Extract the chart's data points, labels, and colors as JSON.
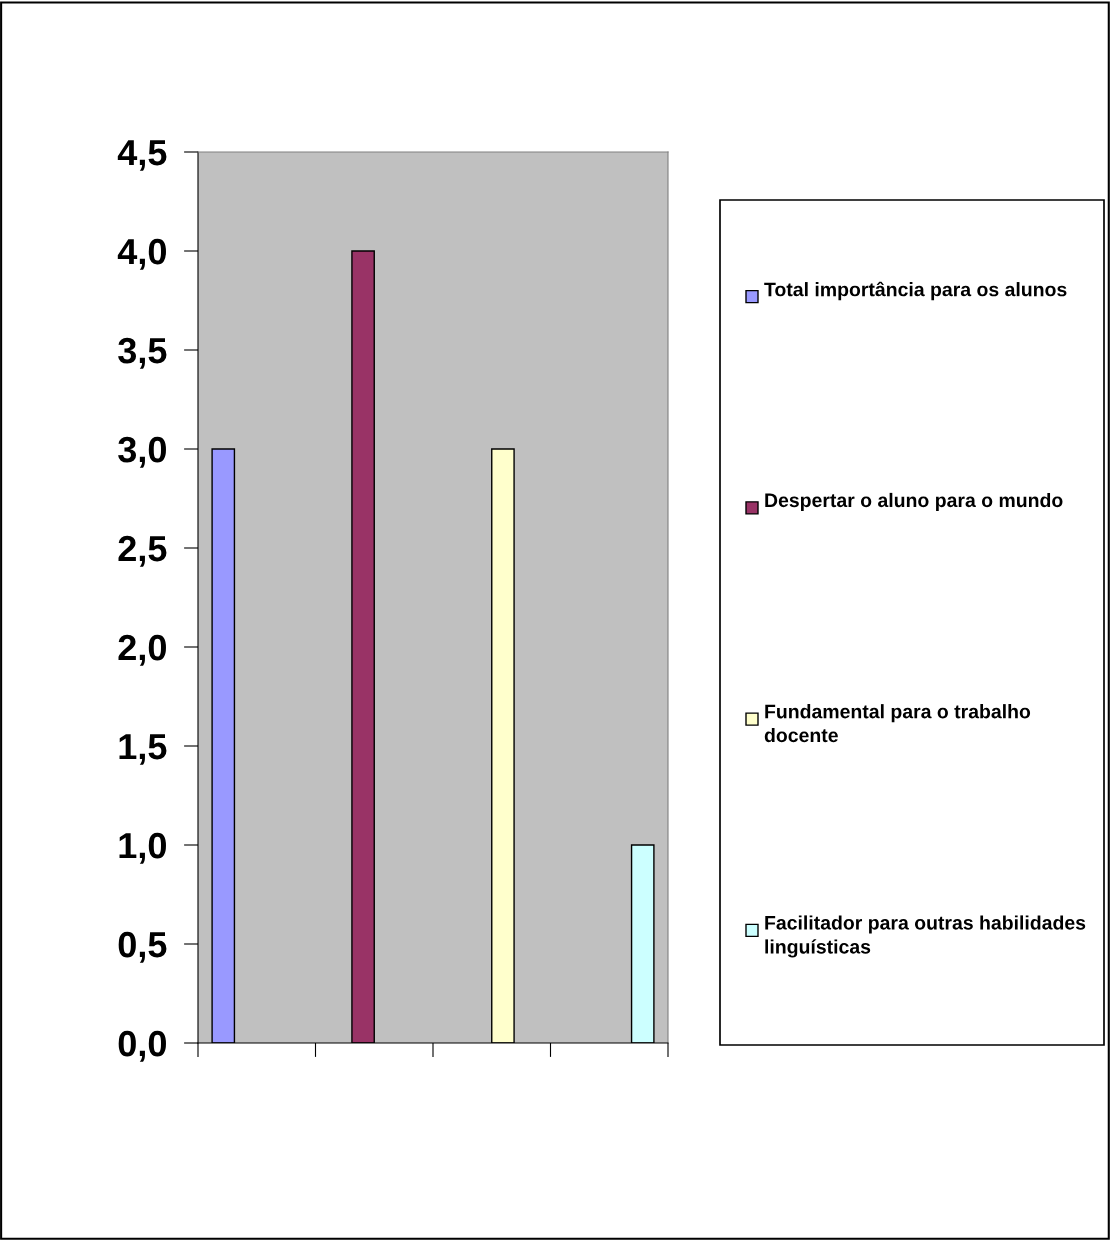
{
  "chart_data": {
    "type": "bar",
    "categories": [
      null,
      null,
      null,
      null
    ],
    "series": [
      {
        "name": "Total importância para os alunos",
        "color": "#9999ff",
        "values": [
          3,
          null,
          null,
          null
        ]
      },
      {
        "name": "Despertar o aluno para o mundo",
        "color": "#993366",
        "values": [
          null,
          4,
          null,
          null
        ]
      },
      {
        "name": "Fundamental para o trabalho docente",
        "color": "#ffffcc",
        "values": [
          null,
          null,
          3,
          null
        ]
      },
      {
        "name": "Facilitador para outras habilidades linguísticas",
        "color": "#ccffff",
        "values": [
          null,
          null,
          null,
          1
        ]
      }
    ],
    "ylim": [
      0,
      4.5
    ],
    "yticks": [
      {
        "value": 0,
        "label": "0,0"
      },
      {
        "value": 0.5,
        "label": "0,5"
      },
      {
        "value": 1,
        "label": "1,0"
      },
      {
        "value": 1.5,
        "label": "1,5"
      },
      {
        "value": 2,
        "label": "2,0"
      },
      {
        "value": 2.5,
        "label": "2,5"
      },
      {
        "value": 3,
        "label": "3,0"
      },
      {
        "value": 3.5,
        "label": "3,5"
      },
      {
        "value": 4,
        "label": "4,0"
      },
      {
        "value": 4.5,
        "label": "4,5"
      }
    ],
    "grid": false,
    "legend": "right"
  }
}
